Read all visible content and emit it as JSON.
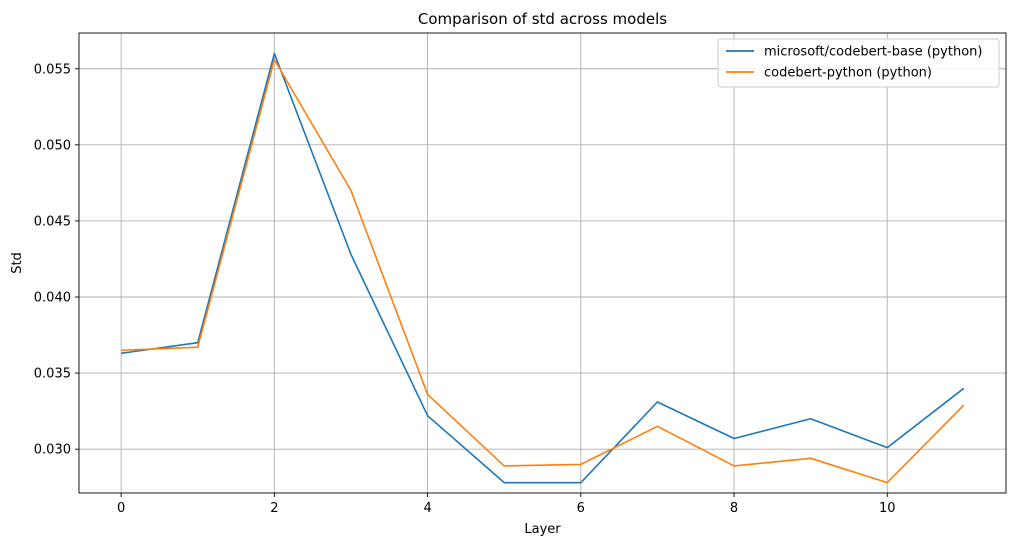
{
  "chart_data": {
    "type": "line",
    "title": "Comparison of std across models",
    "xlabel": "Layer",
    "ylabel": "Std",
    "x": [
      0,
      1,
      2,
      3,
      4,
      5,
      6,
      7,
      8,
      9,
      10,
      11
    ],
    "xlim": [
      -0.55,
      11.55
    ],
    "ylim": [
      0.02712,
      0.05735
    ],
    "xticks": [
      0,
      2,
      4,
      6,
      8,
      10
    ],
    "xtick_labels": [
      "0",
      "2",
      "4",
      "6",
      "8",
      "10"
    ],
    "yticks": [
      0.03,
      0.035,
      0.04,
      0.045,
      0.05,
      0.055
    ],
    "ytick_labels": [
      "0.030",
      "0.035",
      "0.040",
      "0.045",
      "0.050",
      "0.055"
    ],
    "grid": true,
    "legend_position": "top-right",
    "series": [
      {
        "name": "microsoft/codebert-base (python)",
        "color": "#1f77b4",
        "values": [
          0.0363,
          0.037,
          0.056,
          0.0428,
          0.0322,
          0.0278,
          0.0278,
          0.0331,
          0.0307,
          0.032,
          0.0301,
          0.034
        ]
      },
      {
        "name": "codebert-python (python)",
        "color": "#ff7f0e",
        "values": [
          0.0365,
          0.0367,
          0.0556,
          0.047,
          0.0336,
          0.0289,
          0.029,
          0.0315,
          0.0289,
          0.0294,
          0.0278,
          0.0329
        ]
      }
    ]
  }
}
